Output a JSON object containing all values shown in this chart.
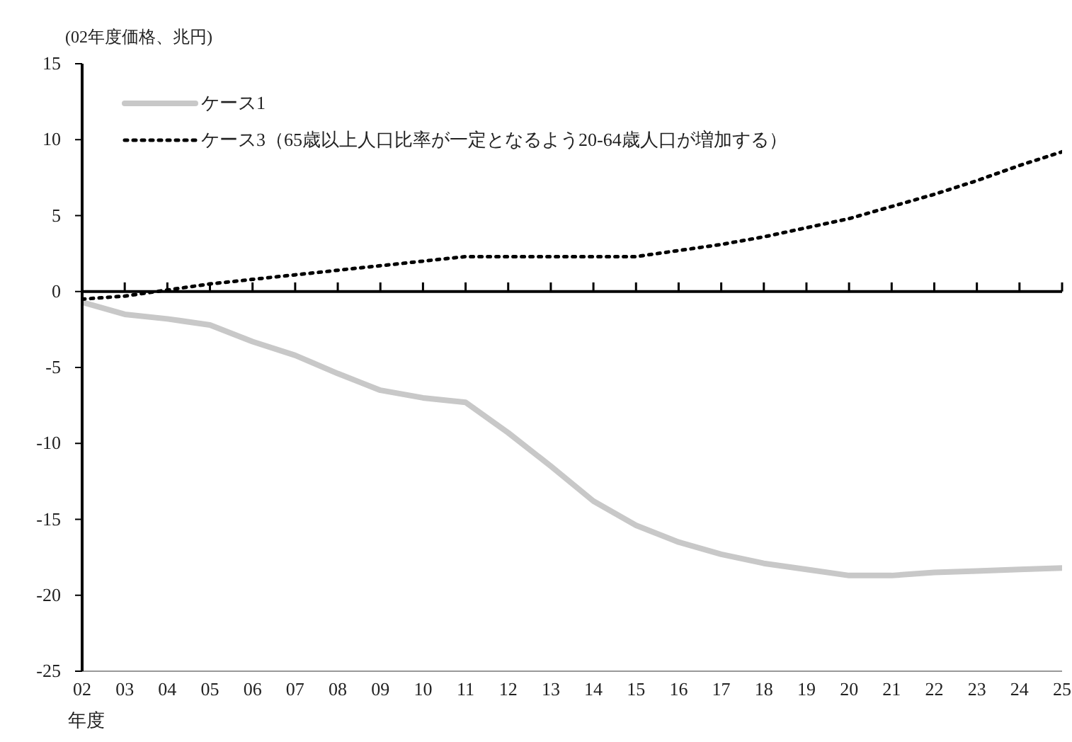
{
  "chart_data": {
    "type": "line",
    "ylabel": "(02年度価格、兆円)",
    "xlabel": "年度",
    "categories": [
      "02",
      "03",
      "04",
      "05",
      "06",
      "07",
      "08",
      "09",
      "10",
      "11",
      "12",
      "13",
      "14",
      "15",
      "16",
      "17",
      "18",
      "19",
      "20",
      "21",
      "22",
      "23",
      "24",
      "25"
    ],
    "series": [
      {
        "name": "ケース1",
        "color": "#c8c8c8",
        "line_style": "solid",
        "values": [
          -0.7,
          -1.5,
          -1.8,
          -2.2,
          -3.3,
          -4.2,
          -5.4,
          -6.5,
          -7.0,
          -7.3,
          -9.3,
          -11.5,
          -13.8,
          -15.4,
          -16.5,
          -17.3,
          -17.9,
          -18.3,
          -18.7,
          -18.7,
          -18.5,
          -18.4,
          -18.3,
          -18.2
        ]
      },
      {
        "name": "ケース3（65歳以上人口比率が一定となるよう20-64歳人口が増加する）",
        "color": "#000000",
        "line_style": "dotted",
        "values": [
          -0.5,
          -0.3,
          0.1,
          0.5,
          0.8,
          1.1,
          1.4,
          1.7,
          2.0,
          2.3,
          2.3,
          2.3,
          2.3,
          2.3,
          2.7,
          3.1,
          3.6,
          4.2,
          4.8,
          5.6,
          6.4,
          7.3,
          8.3,
          9.2
        ]
      }
    ],
    "ylim": [
      -25,
      15
    ],
    "yticks": [
      -25,
      -20,
      -15,
      -10,
      -5,
      0,
      5,
      10,
      15
    ],
    "ref_lines": [
      {
        "axis": "y",
        "value": 0,
        "color": "#000000"
      }
    ],
    "legend": "top left",
    "marker": "none"
  }
}
